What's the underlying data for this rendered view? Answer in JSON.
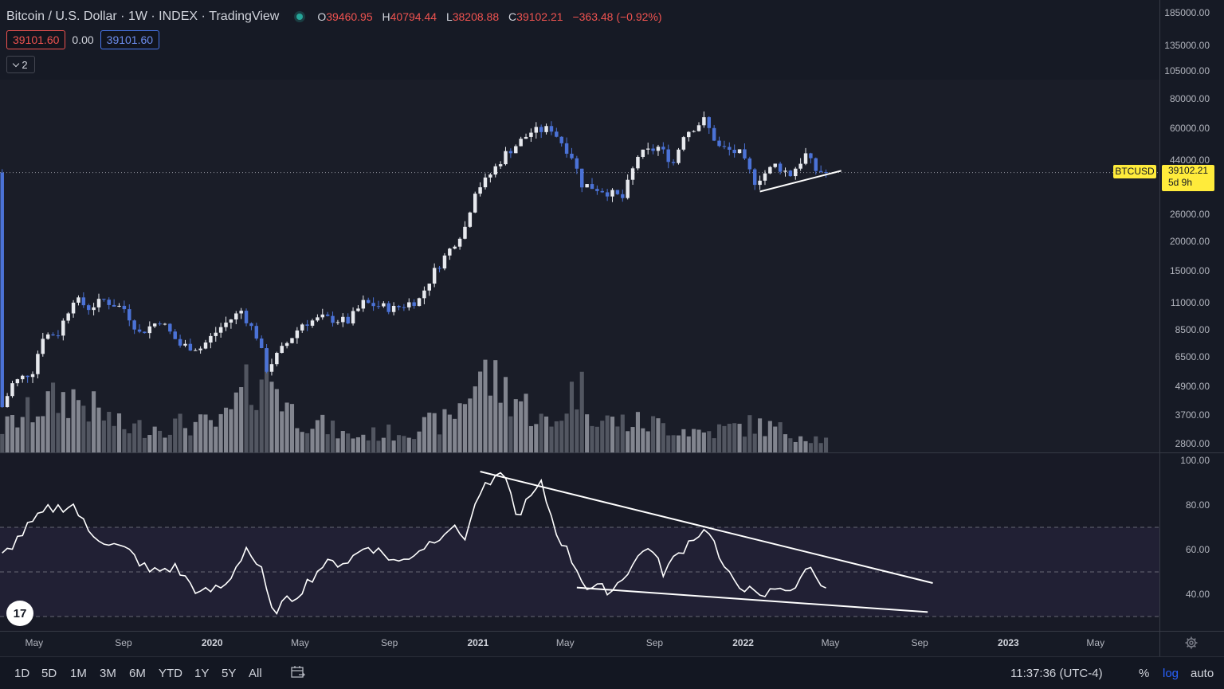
{
  "header": {
    "symbol": "Bitcoin / U.S. Dollar",
    "interval": "1W",
    "exchange": "INDEX",
    "source": "TradingView",
    "open_label": "O",
    "open": "39460.95",
    "high_label": "H",
    "high": "40794.44",
    "low_label": "L",
    "low": "38208.88",
    "close_label": "C",
    "close": "39102.21",
    "change": "−363.48 (−0.92%)",
    "bid": "39101.60",
    "spread": "0.00",
    "ask": "39101.60",
    "collapse_count": "2"
  },
  "price_tag": {
    "symbol": "BTCUSD",
    "price": "39102.21",
    "countdown": "5d 9h"
  },
  "colors": {
    "up": "#e7e9ee",
    "down": "#4b72d6",
    "bg": "#161a25",
    "tag": "#ffeb3b"
  },
  "chart_data": [
    {
      "type": "candlestick",
      "title": "Bitcoin / U.S. Dollar 1W",
      "scale": "log",
      "y_ticks": [
        "185000.00",
        "135000.00",
        "105000.00",
        "80000.00",
        "60000.00",
        "44000.00",
        "26000.00",
        "20000.00",
        "15000.00",
        "11000.00",
        "8500.00",
        "6500.00",
        "4900.00",
        "3700.00",
        "2800.00"
      ],
      "y_tick_values": [
        185000,
        135000,
        105000,
        80000,
        60000,
        44000,
        26000,
        20000,
        15000,
        11000,
        8500,
        6500,
        4900,
        3700,
        2800
      ],
      "x_ticks": [
        "May",
        "Sep",
        "2020",
        "May",
        "Sep",
        "2021",
        "May",
        "Sep",
        "2022",
        "May",
        "Sep",
        "2023",
        "May"
      ],
      "x_ticks_bold": [
        false,
        false,
        true,
        false,
        false,
        true,
        false,
        false,
        true,
        false,
        false,
        true,
        false
      ],
      "x_tick_dates": [
        "2019-05-01",
        "2019-09-01",
        "2020-01-01",
        "2020-05-01",
        "2020-09-01",
        "2021-01-01",
        "2021-05-01",
        "2021-09-01",
        "2022-01-01",
        "2022-05-01",
        "2022-09-01",
        "2023-01-01",
        "2023-05-01"
      ],
      "x_range": [
        "2019-03-15",
        "2023-07-28"
      ],
      "close_anchors": [
        [
          "2019-03-18",
          4000
        ],
        [
          "2019-04-01",
          5000
        ],
        [
          "2019-04-29",
          5700
        ],
        [
          "2019-05-13",
          8000
        ],
        [
          "2019-06-03",
          8200
        ],
        [
          "2019-06-24",
          11500
        ],
        [
          "2019-07-15",
          10500
        ],
        [
          "2019-08-05",
          11300
        ],
        [
          "2019-09-02",
          10400
        ],
        [
          "2019-09-23",
          8200
        ],
        [
          "2019-10-21",
          9300
        ],
        [
          "2019-11-18",
          7300
        ],
        [
          "2019-12-16",
          7100
        ],
        [
          "2020-01-13",
          8700
        ],
        [
          "2020-02-10",
          10200
        ],
        [
          "2020-03-02",
          8000
        ],
        [
          "2020-03-16",
          5800
        ],
        [
          "2020-04-06",
          7000
        ],
        [
          "2020-05-04",
          9000
        ],
        [
          "2020-06-01",
          9500
        ],
        [
          "2020-07-06",
          9200
        ],
        [
          "2020-07-27",
          11000
        ],
        [
          "2020-09-07",
          10400
        ],
        [
          "2020-10-12",
          11400
        ],
        [
          "2020-11-02",
          15000
        ],
        [
          "2020-11-23",
          18500
        ],
        [
          "2020-12-14",
          23000
        ],
        [
          "2020-12-28",
          33000
        ],
        [
          "2021-01-11",
          36000
        ],
        [
          "2021-02-08",
          47000
        ],
        [
          "2021-02-22",
          51000
        ],
        [
          "2021-03-15",
          58000
        ],
        [
          "2021-04-12",
          60000
        ],
        [
          "2021-05-10",
          46000
        ],
        [
          "2021-05-24",
          35000
        ],
        [
          "2021-06-21",
          33000
        ],
        [
          "2021-07-19",
          30500
        ],
        [
          "2021-08-09",
          46000
        ],
        [
          "2021-09-06",
          50000
        ],
        [
          "2021-09-27",
          43000
        ],
        [
          "2021-10-11",
          57000
        ],
        [
          "2021-11-08",
          65000
        ],
        [
          "2021-11-29",
          50000
        ],
        [
          "2021-12-27",
          47000
        ],
        [
          "2022-01-17",
          36000
        ],
        [
          "2022-02-14",
          42000
        ],
        [
          "2022-03-07",
          38500
        ],
        [
          "2022-03-28",
          46500
        ],
        [
          "2022-04-11",
          40000
        ],
        [
          "2022-04-25",
          39102
        ]
      ],
      "volume_anchors": [
        [
          "2019-03-18",
          0.06
        ],
        [
          "2019-05-13",
          0.12
        ],
        [
          "2019-06-24",
          0.14
        ],
        [
          "2019-09-02",
          0.06
        ],
        [
          "2019-11-18",
          0.07
        ],
        [
          "2020-01-13",
          0.07
        ],
        [
          "2020-03-16",
          0.22
        ],
        [
          "2020-04-20",
          0.1
        ],
        [
          "2020-07-06",
          0.04
        ],
        [
          "2020-09-07",
          0.05
        ],
        [
          "2020-11-23",
          0.08
        ],
        [
          "2021-01-04",
          0.2
        ],
        [
          "2021-02-22",
          0.14
        ],
        [
          "2021-04-12",
          0.06
        ],
        [
          "2021-05-17",
          0.17
        ],
        [
          "2021-06-21",
          0.08
        ],
        [
          "2021-09-06",
          0.07
        ],
        [
          "2021-11-08",
          0.05
        ],
        [
          "2022-01-17",
          0.07
        ],
        [
          "2022-04-25",
          0.03
        ]
      ],
      "trendline": [
        [
          "2022-01-24",
          32500
        ],
        [
          "2022-05-16",
          39800
        ]
      ],
      "last_price": 39102.21
    },
    {
      "type": "line",
      "title": "RSI",
      "y_ticks": [
        "100.00",
        "80.00",
        "60.00",
        "40.00"
      ],
      "y_tick_values": [
        100,
        80,
        60,
        40
      ],
      "ylim": [
        22,
        100
      ],
      "bands": [
        70,
        50,
        30
      ],
      "anchors": [
        [
          "2019-03-18",
          57
        ],
        [
          "2019-04-22",
          70
        ],
        [
          "2019-05-20",
          78
        ],
        [
          "2019-06-24",
          80
        ],
        [
          "2019-07-15",
          68
        ],
        [
          "2019-08-12",
          63
        ],
        [
          "2019-09-09",
          59
        ],
        [
          "2019-10-07",
          50
        ],
        [
          "2019-11-11",
          52
        ],
        [
          "2019-12-16",
          40
        ],
        [
          "2020-01-20",
          44
        ],
        [
          "2020-02-17",
          61
        ],
        [
          "2020-03-09",
          50
        ],
        [
          "2020-03-23",
          32
        ],
        [
          "2020-04-27",
          40
        ],
        [
          "2020-06-01",
          53
        ],
        [
          "2020-07-06",
          55
        ],
        [
          "2020-08-03",
          62
        ],
        [
          "2020-09-14",
          54
        ],
        [
          "2020-10-26",
          63
        ],
        [
          "2020-11-23",
          70
        ],
        [
          "2020-12-14",
          66
        ],
        [
          "2021-01-04",
          86
        ],
        [
          "2021-02-08",
          94
        ],
        [
          "2021-02-22",
          75
        ],
        [
          "2021-03-29",
          89
        ],
        [
          "2021-04-19",
          68
        ],
        [
          "2021-05-31",
          43
        ],
        [
          "2021-07-05",
          42
        ],
        [
          "2021-08-23",
          62
        ],
        [
          "2021-09-13",
          50
        ],
        [
          "2021-10-25",
          66
        ],
        [
          "2021-11-15",
          69
        ],
        [
          "2021-12-06",
          50
        ],
        [
          "2022-01-24",
          38
        ],
        [
          "2022-02-21",
          44
        ],
        [
          "2022-03-14",
          41
        ],
        [
          "2022-03-28",
          53
        ],
        [
          "2022-04-25",
          44
        ]
      ],
      "upper_line": [
        [
          "2021-01-04",
          95
        ],
        [
          "2022-09-19",
          45
        ]
      ],
      "lower_line": [
        [
          "2021-05-17",
          43
        ],
        [
          "2022-09-12",
          32
        ]
      ]
    }
  ],
  "toolbar": {
    "timeframes": [
      "1D",
      "5D",
      "1M",
      "3M",
      "6M",
      "YTD",
      "1Y",
      "5Y",
      "All"
    ],
    "clock": "11:37:36 (UTC-4)",
    "percent": "%",
    "log": "log",
    "auto": "auto"
  },
  "logo_text": "17"
}
